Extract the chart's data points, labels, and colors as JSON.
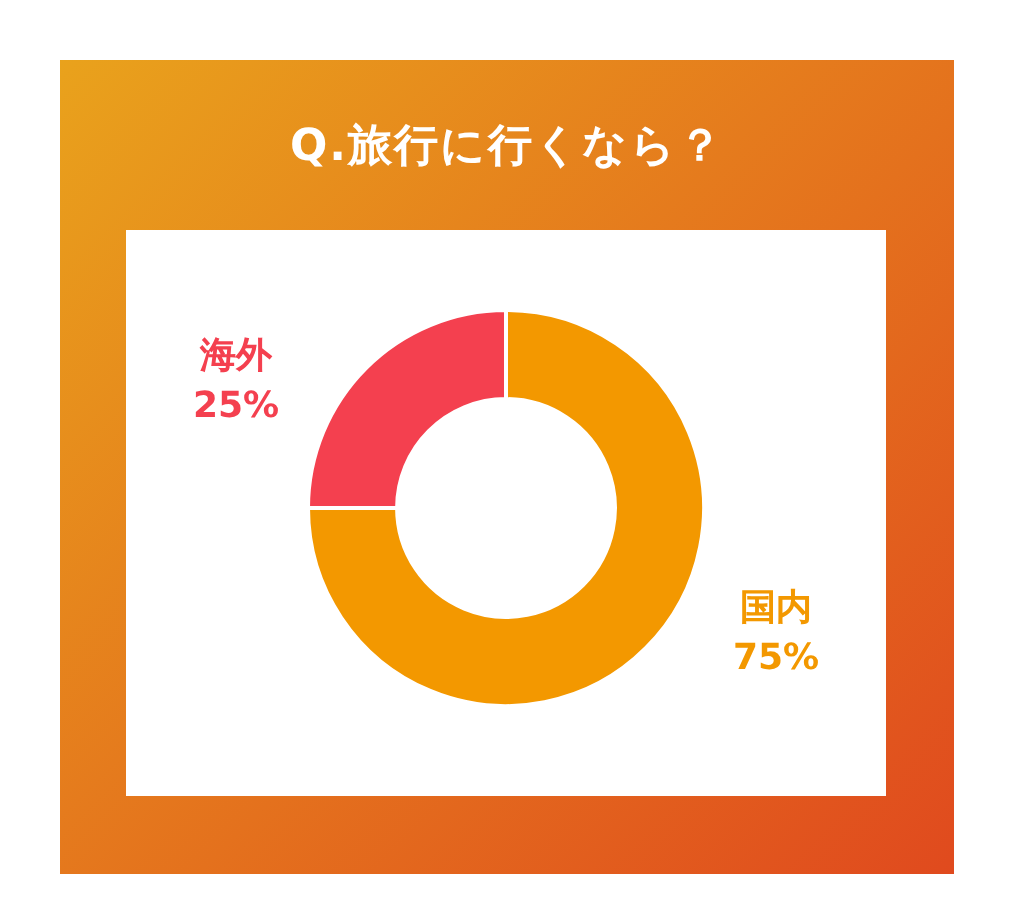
{
  "chart_data": {
    "type": "donut",
    "title": "Q.旅行に行くなら？",
    "categories": [
      "海外",
      "国内"
    ],
    "values": [
      25,
      75
    ],
    "colors": [
      "#f4404f",
      "#f39800"
    ],
    "value_labels": [
      "25%",
      "75%"
    ]
  }
}
